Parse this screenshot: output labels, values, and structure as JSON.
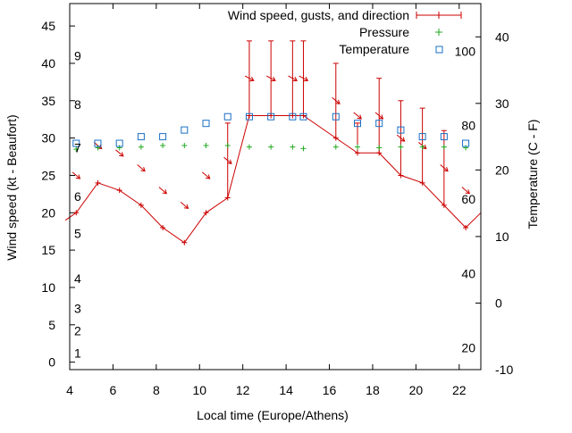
{
  "chart_data": {
    "type": "line",
    "title": "",
    "xlabel": "Local time (Europe/Athens)",
    "ylabel": "Wind speed (kt - Beaufort)",
    "y2label": "Temperature (C - F)",
    "xlim": [
      4,
      23
    ],
    "ylim": [
      -1,
      48
    ],
    "y2lim": [
      -10,
      45
    ],
    "x_ticks": [
      4,
      6,
      8,
      10,
      12,
      14,
      16,
      18,
      20,
      22
    ],
    "y_ticks": [
      0,
      5,
      10,
      15,
      20,
      25,
      30,
      35,
      40,
      45
    ],
    "y2_ticks": [
      -10,
      0,
      10,
      20,
      30,
      40
    ],
    "beaufort_labels": [
      {
        "label": "1",
        "kt": 1.2
      },
      {
        "label": "2",
        "kt": 4.2
      },
      {
        "label": "3",
        "kt": 7.2
      },
      {
        "label": "4",
        "kt": 11.2
      },
      {
        "label": "5",
        "kt": 17.2
      },
      {
        "label": "6",
        "kt": 22.2
      },
      {
        "label": "7",
        "kt": 28.7
      },
      {
        "label": "8",
        "kt": 34.5
      },
      {
        "label": "9",
        "kt": 41.0
      }
    ],
    "fahrenheit_labels": [
      {
        "label": "20",
        "c": -6.7
      },
      {
        "label": "40",
        "c": 4.4
      },
      {
        "label": "60",
        "c": 15.6
      },
      {
        "label": "80",
        "c": 26.7
      },
      {
        "label": "100",
        "c": 37.8
      }
    ],
    "legend": [
      "Wind speed, gusts, and direction",
      "Pressure",
      "Temperature"
    ],
    "colors": {
      "wind": "#cc0000",
      "pressure": "#22aa22",
      "temperature": "#1a6fc4"
    },
    "series": [
      {
        "name": "Wind speed, gusts, and direction",
        "x": [
          3.8,
          4.3,
          5.3,
          6.3,
          7.3,
          8.3,
          9.3,
          10.3,
          11.3,
          12.3,
          13.3,
          14.3,
          14.8,
          16.3,
          17.3,
          18.3,
          19.3,
          20.3,
          21.3,
          22.3,
          23
        ],
        "speed": [
          19,
          20,
          24,
          23,
          21,
          18,
          16,
          20,
          22,
          33,
          33,
          33,
          33,
          30,
          28,
          28,
          25,
          24,
          21,
          18,
          20
        ],
        "gust": [
          null,
          null,
          null,
          null,
          null,
          null,
          null,
          null,
          32,
          43,
          43,
          43,
          43,
          40,
          32,
          38,
          35,
          34,
          31,
          null,
          null
        ],
        "direction_deg": [
          null,
          315,
          315,
          315,
          315,
          315,
          315,
          315,
          315,
          330,
          330,
          330,
          330,
          315,
          315,
          315,
          315,
          315,
          315,
          315,
          null
        ]
      },
      {
        "name": "Pressure",
        "x": [
          4.3,
          5.3,
          6.3,
          7.3,
          8.3,
          9.3,
          10.3,
          11.3,
          12.3,
          13.3,
          14.3,
          14.8,
          16.3,
          17.3,
          18.3,
          19.3,
          20.3,
          21.3,
          22.3
        ],
        "wind_axis_value": [
          28.5,
          28.7,
          28.7,
          28.8,
          29,
          29,
          29,
          29,
          28.8,
          28.8,
          28.8,
          28.6,
          28.8,
          28.8,
          28.7,
          28.8,
          28.8,
          28.8,
          28.7
        ]
      },
      {
        "name": "Temperature",
        "x": [
          4.3,
          5.3,
          6.3,
          7.3,
          8.3,
          9.3,
          10.3,
          11.3,
          12.3,
          13.3,
          14.3,
          14.8,
          16.3,
          17.3,
          18.3,
          19.3,
          20.3,
          21.3,
          22.3
        ],
        "y2": [
          24,
          24,
          24,
          25,
          25,
          26,
          27,
          28,
          28,
          28,
          28,
          28,
          28,
          27,
          27,
          26,
          25,
          25,
          24
        ]
      }
    ]
  }
}
